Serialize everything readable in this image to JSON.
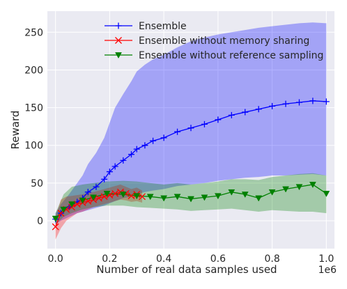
{
  "chart_data": {
    "type": "line",
    "title": "",
    "xlabel": "Number of real data samples used",
    "ylabel": "Reward",
    "x_offset_label": "1e6",
    "xlim": [
      -0.03,
      1.03
    ],
    "ylim": [
      -37,
      278
    ],
    "x_ticks": [
      0.0,
      0.2,
      0.4,
      0.6,
      0.8,
      1.0
    ],
    "x_tick_labels": [
      "0.0",
      "0.2",
      "0.4",
      "0.6",
      "0.8",
      "1.0"
    ],
    "y_ticks": [
      0,
      50,
      100,
      150,
      200,
      250
    ],
    "y_tick_labels": [
      "0",
      "50",
      "100",
      "150",
      "200",
      "250"
    ],
    "grid": true,
    "background": "#eaeaf2",
    "legend_position": "top",
    "series": [
      {
        "name": "Ensemble",
        "color": "#0000ff",
        "marker": "plus",
        "x": [
          0.0,
          0.02,
          0.05,
          0.08,
          0.1,
          0.12,
          0.15,
          0.18,
          0.2,
          0.22,
          0.25,
          0.28,
          0.3,
          0.33,
          0.36,
          0.4,
          0.45,
          0.5,
          0.55,
          0.6,
          0.65,
          0.7,
          0.75,
          0.8,
          0.85,
          0.9,
          0.95,
          1.0
        ],
        "y": [
          2,
          10,
          18,
          25,
          30,
          38,
          45,
          55,
          65,
          72,
          80,
          88,
          95,
          100,
          106,
          110,
          118,
          123,
          128,
          134,
          140,
          144,
          148,
          152,
          155,
          157,
          159,
          158
        ],
        "lower": [
          -5,
          0,
          5,
          10,
          12,
          14,
          17,
          20,
          23,
          26,
          30,
          32,
          35,
          38,
          40,
          42,
          46,
          48,
          50,
          53,
          55,
          57,
          58,
          60,
          60,
          61,
          62,
          60
        ],
        "upper": [
          10,
          22,
          35,
          50,
          60,
          75,
          90,
          110,
          130,
          150,
          168,
          185,
          198,
          207,
          214,
          220,
          230,
          238,
          243,
          247,
          250,
          253,
          256,
          258,
          260,
          262,
          263,
          262
        ]
      },
      {
        "name": "Ensemble without memory sharing",
        "color": "#ff0000",
        "marker": "x",
        "x": [
          0.0,
          0.02,
          0.04,
          0.06,
          0.08,
          0.1,
          0.12,
          0.14,
          0.16,
          0.18,
          0.2,
          0.22,
          0.24,
          0.26,
          0.28,
          0.3,
          0.32
        ],
        "y": [
          -8,
          10,
          15,
          18,
          22,
          24,
          26,
          28,
          30,
          32,
          34,
          36,
          38,
          36,
          33,
          35,
          32
        ],
        "lower": [
          -25,
          -10,
          0,
          5,
          10,
          12,
          15,
          18,
          20,
          22,
          24,
          26,
          28,
          27,
          25,
          26,
          24
        ],
        "upper": [
          5,
          28,
          32,
          33,
          34,
          35,
          37,
          38,
          40,
          42,
          44,
          46,
          48,
          45,
          42,
          44,
          40
        ]
      },
      {
        "name": "Ensemble without reference sampling",
        "color": "#008000",
        "marker": "triangle-down",
        "x": [
          0.0,
          0.03,
          0.06,
          0.1,
          0.14,
          0.19,
          0.25,
          0.3,
          0.35,
          0.4,
          0.45,
          0.5,
          0.55,
          0.6,
          0.65,
          0.7,
          0.75,
          0.8,
          0.85,
          0.9,
          0.95,
          1.0
        ],
        "y": [
          3,
          15,
          22,
          27,
          31,
          36,
          35,
          33,
          32,
          30,
          32,
          29,
          31,
          33,
          38,
          35,
          30,
          38,
          42,
          45,
          48,
          36
        ],
        "lower": [
          -5,
          5,
          10,
          15,
          18,
          20,
          20,
          18,
          17,
          16,
          15,
          13,
          14,
          15,
          16,
          14,
          12,
          14,
          13,
          12,
          12,
          10
        ],
        "upper": [
          10,
          35,
          45,
          48,
          50,
          52,
          53,
          52,
          50,
          48,
          50,
          48,
          50,
          52,
          55,
          55,
          54,
          58,
          60,
          62,
          63,
          60
        ]
      }
    ]
  }
}
